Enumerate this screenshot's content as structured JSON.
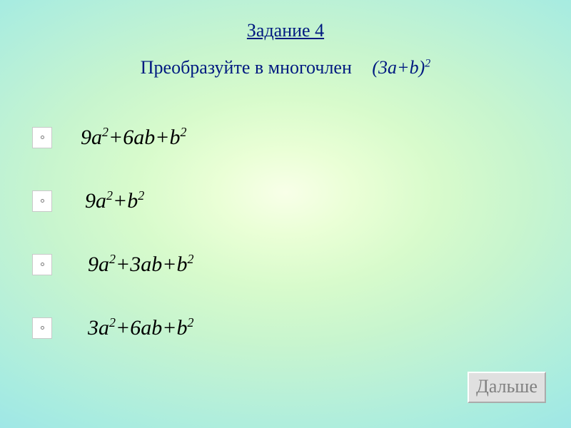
{
  "title": "Задание 4",
  "subtitle_prefix": "Преобразуйте в многочлен",
  "expression": {
    "base": "(3a+b)",
    "exp": "2"
  },
  "options": [
    {
      "terms": [
        "9a",
        "2",
        "+6ab+b",
        "2"
      ],
      "indent": 40
    },
    {
      "terms": [
        "9a",
        "2",
        "+b",
        "2"
      ],
      "indent": 46
    },
    {
      "terms": [
        "9a",
        "2",
        "+3ab+b",
        "2"
      ],
      "indent": 50
    },
    {
      "terms": [
        "3a",
        "2",
        "+6ab+b",
        "2"
      ],
      "indent": 50
    }
  ],
  "button_label": "Дальше",
  "colors": {
    "heading": "#001a80",
    "body_text": "#000000",
    "button_bg": "#e0e0e0",
    "button_text": "#808080",
    "radio_bg": "#ffffff"
  },
  "fontsizes": {
    "title": 26,
    "subtitle": 26,
    "option": 30,
    "button": 26
  }
}
